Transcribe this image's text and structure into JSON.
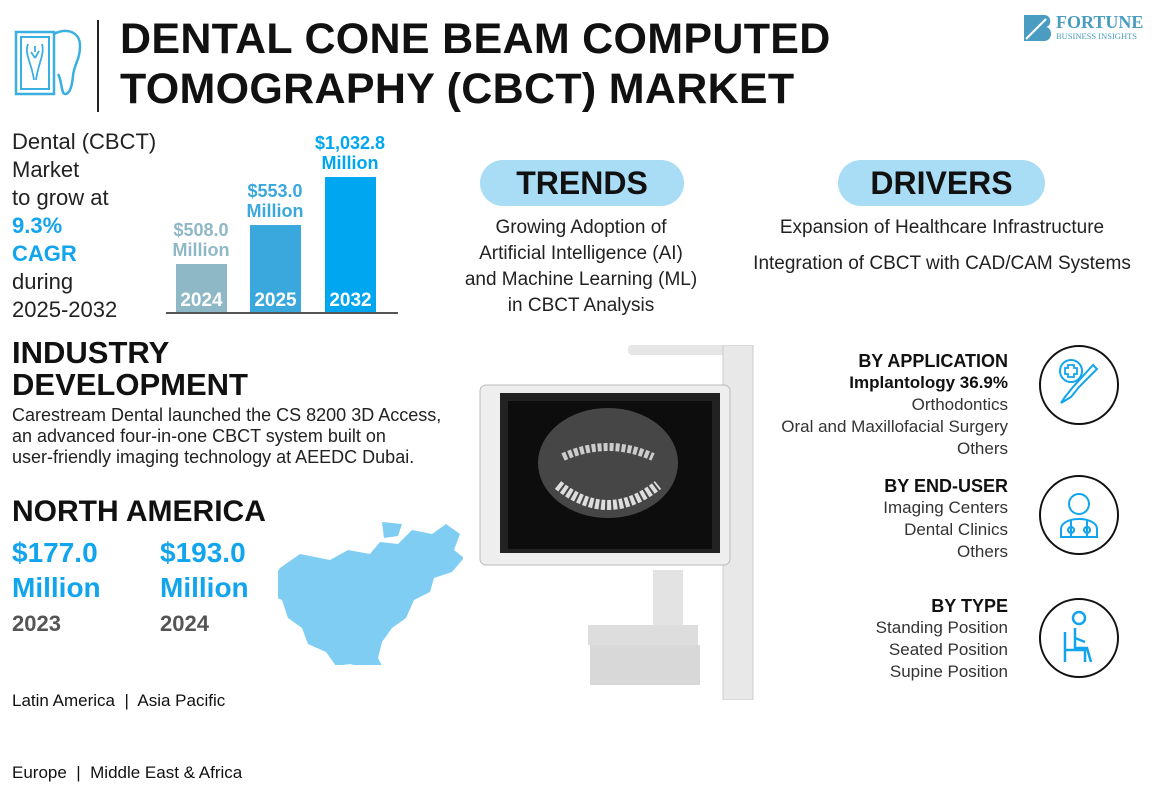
{
  "header": {
    "title_line1": "DENTAL CONE BEAM COMPUTED",
    "title_line2": "TOMOGRAPHY (CBCT) MARKET",
    "logo_text": "FORTUNE",
    "logo_subtext": "BUSINESS INSIGHTS",
    "icon": "tooth-xray-icon"
  },
  "growth": {
    "line1": "Dental (CBCT)",
    "line2": "Market",
    "line3": "to grow at",
    "cagr": "9.3%",
    "cagr_label": "CAGR",
    "line4": "during",
    "period": "2025-2032"
  },
  "chart_data": {
    "type": "bar",
    "categories": [
      "2024",
      "2025",
      "2032"
    ],
    "values": [
      508.0,
      553.0,
      1032.8
    ],
    "labels": [
      "$508.0 Million",
      "$553.0 Million",
      "$1,032.8 Million"
    ],
    "value_text": [
      "$508.0",
      "$553.0",
      "$1,032.8"
    ],
    "unit": "Million",
    "colors": [
      "#8fb8c6",
      "#3aa8dc",
      "#00a6f0"
    ]
  },
  "trends": {
    "title": "TRENDS",
    "lines": [
      "Growing Adoption of",
      "Artificial Intelligence (AI)",
      "and Machine Learning (ML)",
      "in CBCT Analysis"
    ]
  },
  "drivers": {
    "title": "DRIVERS",
    "items": [
      "Expansion of Healthcare Infrastructure",
      "Integration of CBCT with CAD/CAM Systems"
    ]
  },
  "industry": {
    "title_line1": "INDUSTRY",
    "title_line2": "DEVELOPMENT",
    "lines": [
      "Carestream Dental launched the CS 8200 3D Access,",
      "an advanced four-in-one CBCT system built on",
      "user-friendly imaging technology at AEEDC Dubai."
    ]
  },
  "region": {
    "title": "NORTH AMERICA",
    "values": [
      {
        "amount": "$177.0",
        "unit": "Million",
        "year": "2023"
      },
      {
        "amount": "$193.0",
        "unit": "Million",
        "year": "2024"
      }
    ],
    "others_line1": "Latin America  |  Asia Pacific",
    "others_line2": "Europe  |  Middle East & Africa"
  },
  "segments": [
    {
      "title": "BY APPLICATION",
      "highlight": "Implantology 36.9%",
      "items": [
        "Orthodontics",
        "Oral and Maxillofacial Surgery",
        "Others"
      ],
      "icon": "scalpel-icon"
    },
    {
      "title": "BY END-USER",
      "items": [
        "Imaging Centers",
        "Dental Clinics",
        "Others"
      ],
      "icon": "doctor-icon"
    },
    {
      "title": "BY TYPE",
      "items": [
        "Standing Position",
        "Seated Position",
        "Supine Position"
      ],
      "icon": "seated-person-icon"
    }
  ],
  "colors": {
    "accent": "#12a5ee",
    "pill": "#a9dcf5",
    "map": "#7fcdf3"
  }
}
